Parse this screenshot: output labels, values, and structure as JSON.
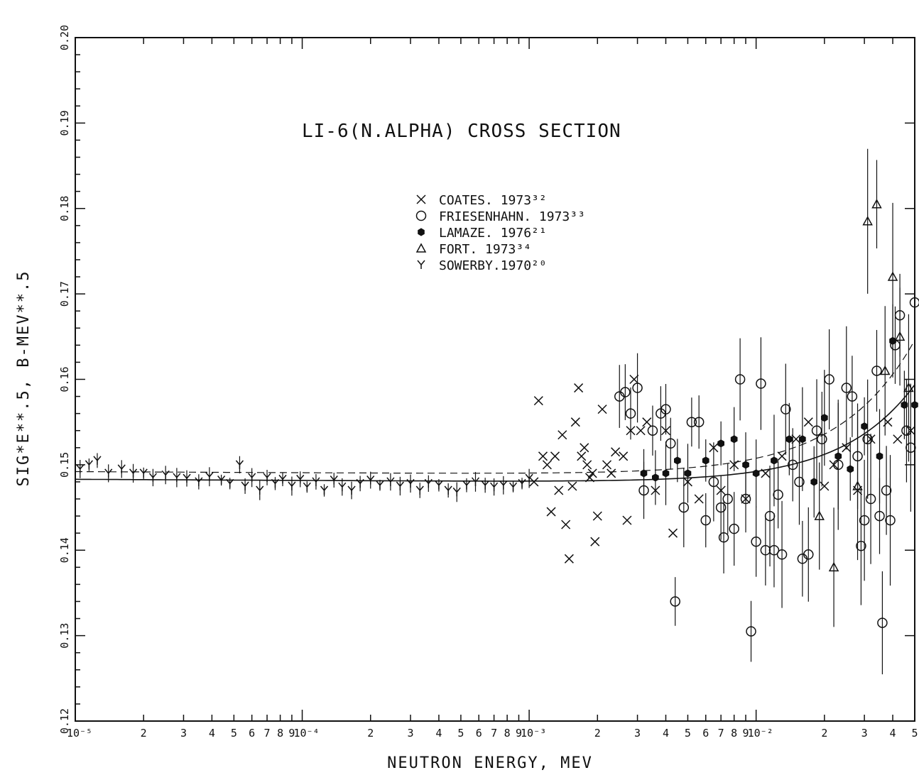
{
  "chart_data": {
    "type": "scatter",
    "title": "LI-6(N.ALPHA) CROSS SECTION",
    "xlabel": "NEUTRON ENERGY, MEV",
    "ylabel": "SIG*E**.5, B-MEV**.5",
    "x_scale": "log",
    "xlim": [
      1e-05,
      0.05
    ],
    "ylim": [
      0.12,
      0.2
    ],
    "y_ticks": [
      "0.12",
      "0.13",
      "0.14",
      "0.15",
      "0.16",
      "0.17",
      "0.18",
      "0.19",
      "0.20"
    ],
    "x_tick_labels": [
      {
        "value": 1e-05,
        "label": "10⁻⁵"
      },
      {
        "value": 2e-05,
        "label": "2"
      },
      {
        "value": 3e-05,
        "label": "3"
      },
      {
        "value": 4e-05,
        "label": "4"
      },
      {
        "value": 5e-05,
        "label": "5"
      },
      {
        "value": 6e-05,
        "label": "6"
      },
      {
        "value": 7e-05,
        "label": "7"
      },
      {
        "value": 8e-05,
        "label": "8"
      },
      {
        "value": 9e-05,
        "label": "9"
      },
      {
        "value": 0.0001,
        "label": "10⁻⁴"
      },
      {
        "value": 0.0002,
        "label": "2"
      },
      {
        "value": 0.0003,
        "label": "3"
      },
      {
        "value": 0.0004,
        "label": "4"
      },
      {
        "value": 0.0005,
        "label": "5"
      },
      {
        "value": 0.0006,
        "label": "6"
      },
      {
        "value": 0.0007,
        "label": "7"
      },
      {
        "value": 0.0008,
        "label": "8"
      },
      {
        "value": 0.0009,
        "label": "9"
      },
      {
        "value": 0.001,
        "label": "10⁻³"
      },
      {
        "value": 0.002,
        "label": "2"
      },
      {
        "value": 0.003,
        "label": "3"
      },
      {
        "value": 0.004,
        "label": "4"
      },
      {
        "value": 0.005,
        "label": "5"
      },
      {
        "value": 0.006,
        "label": "6"
      },
      {
        "value": 0.007,
        "label": "7"
      },
      {
        "value": 0.008,
        "label": "8"
      },
      {
        "value": 0.009,
        "label": "9"
      },
      {
        "value": 0.01,
        "label": "10⁻²"
      },
      {
        "value": 0.02,
        "label": "2"
      },
      {
        "value": 0.03,
        "label": "3"
      },
      {
        "value": 0.04,
        "label": "4"
      },
      {
        "value": 0.05,
        "label": "5"
      }
    ],
    "grid": false,
    "legend_placement": "top-center",
    "series": [
      {
        "name": "COATES. 1973³²",
        "marker": "x",
        "points": [
          [
            0.00105,
            0.148
          ],
          [
            0.0011,
            0.1575
          ],
          [
            0.00115,
            0.151
          ],
          [
            0.0012,
            0.15
          ],
          [
            0.00125,
            0.1445
          ],
          [
            0.0013,
            0.151
          ],
          [
            0.00135,
            0.147
          ],
          [
            0.0014,
            0.1535
          ],
          [
            0.00145,
            0.143
          ],
          [
            0.0015,
            0.139
          ],
          [
            0.00155,
            0.1475
          ],
          [
            0.0016,
            0.155
          ],
          [
            0.00165,
            0.159
          ],
          [
            0.0017,
            0.151
          ],
          [
            0.00175,
            0.152
          ],
          [
            0.0018,
            0.15
          ],
          [
            0.00185,
            0.1485
          ],
          [
            0.0019,
            0.149
          ],
          [
            0.00195,
            0.141
          ],
          [
            0.002,
            0.144
          ],
          [
            0.0021,
            0.1565
          ],
          [
            0.0022,
            0.15
          ],
          [
            0.0023,
            0.149
          ],
          [
            0.0024,
            0.1515
          ],
          [
            0.0026,
            0.151
          ],
          [
            0.0027,
            0.1435
          ],
          [
            0.0028,
            0.154
          ],
          [
            0.0029,
            0.16
          ],
          [
            0.0031,
            0.154
          ],
          [
            0.0033,
            0.155
          ],
          [
            0.0036,
            0.147
          ],
          [
            0.004,
            0.154
          ],
          [
            0.0043,
            0.142
          ],
          [
            0.005,
            0.148
          ],
          [
            0.0056,
            0.146
          ],
          [
            0.0065,
            0.152
          ],
          [
            0.007,
            0.147
          ],
          [
            0.008,
            0.15
          ],
          [
            0.009,
            0.146
          ],
          [
            0.011,
            0.149
          ],
          [
            0.013,
            0.151
          ],
          [
            0.015,
            0.153
          ],
          [
            0.017,
            0.155
          ],
          [
            0.02,
            0.1475
          ],
          [
            0.022,
            0.15
          ],
          [
            0.025,
            0.152
          ],
          [
            0.028,
            0.147
          ],
          [
            0.032,
            0.153
          ],
          [
            0.038,
            0.155
          ],
          [
            0.042,
            0.153
          ],
          [
            0.048,
            0.154
          ]
        ]
      },
      {
        "name": "FRIESENHAHN. 1973³³",
        "marker": "circle",
        "points": [
          [
            0.0025,
            0.158
          ],
          [
            0.00265,
            0.1585
          ],
          [
            0.0028,
            0.156
          ],
          [
            0.003,
            0.159
          ],
          [
            0.0032,
            0.147
          ],
          [
            0.0035,
            0.154
          ],
          [
            0.0038,
            0.156
          ],
          [
            0.004,
            0.1565
          ],
          [
            0.0042,
            0.1525
          ],
          [
            0.0044,
            0.134
          ],
          [
            0.0048,
            0.145
          ],
          [
            0.0052,
            0.155
          ],
          [
            0.0056,
            0.155
          ],
          [
            0.006,
            0.1435
          ],
          [
            0.0065,
            0.148
          ],
          [
            0.007,
            0.145
          ],
          [
            0.0072,
            0.1415
          ],
          [
            0.0075,
            0.146
          ],
          [
            0.008,
            0.1425
          ],
          [
            0.0085,
            0.16
          ],
          [
            0.009,
            0.146
          ],
          [
            0.0095,
            0.1305
          ],
          [
            0.01,
            0.141
          ],
          [
            0.0105,
            0.1595
          ],
          [
            0.011,
            0.14
          ],
          [
            0.0115,
            0.144
          ],
          [
            0.012,
            0.14
          ],
          [
            0.0125,
            0.1465
          ],
          [
            0.013,
            0.1395
          ],
          [
            0.0135,
            0.1565
          ],
          [
            0.0145,
            0.15
          ],
          [
            0.0155,
            0.148
          ],
          [
            0.016,
            0.139
          ],
          [
            0.017,
            0.1395
          ],
          [
            0.0185,
            0.154
          ],
          [
            0.0195,
            0.153
          ],
          [
            0.021,
            0.16
          ],
          [
            0.023,
            0.15
          ],
          [
            0.025,
            0.159
          ],
          [
            0.0265,
            0.158
          ],
          [
            0.028,
            0.151
          ],
          [
            0.029,
            0.1405
          ],
          [
            0.03,
            0.1435
          ],
          [
            0.031,
            0.153
          ],
          [
            0.032,
            0.146
          ],
          [
            0.034,
            0.161
          ],
          [
            0.035,
            0.144
          ],
          [
            0.036,
            0.1315
          ],
          [
            0.0375,
            0.147
          ],
          [
            0.039,
            0.1435
          ],
          [
            0.041,
            0.164
          ],
          [
            0.043,
            0.1675
          ],
          [
            0.046,
            0.154
          ],
          [
            0.048,
            0.152
          ],
          [
            0.05,
            0.169
          ]
        ]
      },
      {
        "name": "LAMAZE. 1976²¹",
        "marker": "filled-hexagon",
        "points": [
          [
            0.0032,
            0.149
          ],
          [
            0.0036,
            0.1485
          ],
          [
            0.004,
            0.149
          ],
          [
            0.0045,
            0.1505
          ],
          [
            0.005,
            0.149
          ],
          [
            0.006,
            0.1505
          ],
          [
            0.007,
            0.1525
          ],
          [
            0.008,
            0.153
          ],
          [
            0.009,
            0.15
          ],
          [
            0.01,
            0.149
          ],
          [
            0.012,
            0.1505
          ],
          [
            0.014,
            0.153
          ],
          [
            0.016,
            0.153
          ],
          [
            0.018,
            0.148
          ],
          [
            0.02,
            0.1555
          ],
          [
            0.023,
            0.151
          ],
          [
            0.026,
            0.1495
          ],
          [
            0.03,
            0.1545
          ],
          [
            0.035,
            0.151
          ],
          [
            0.04,
            0.1645
          ],
          [
            0.045,
            0.157
          ],
          [
            0.05,
            0.157
          ]
        ]
      },
      {
        "name": "FORT. 1973³⁴",
        "marker": "triangle",
        "points": [
          [
            0.019,
            0.144
          ],
          [
            0.022,
            0.138
          ],
          [
            0.028,
            0.1475
          ],
          [
            0.031,
            0.1785
          ],
          [
            0.034,
            0.1805
          ],
          [
            0.037,
            0.161
          ],
          [
            0.04,
            0.172
          ],
          [
            0.043,
            0.165
          ],
          [
            0.047,
            0.159
          ]
        ]
      },
      {
        "name": "SOWERBY.1970²⁰",
        "marker": "y",
        "points": [
          [
            1.05e-05,
            0.1495
          ],
          [
            1.15e-05,
            0.15
          ],
          [
            1.25e-05,
            0.1505
          ],
          [
            1.4e-05,
            0.149
          ],
          [
            1.6e-05,
            0.1495
          ],
          [
            1.8e-05,
            0.149
          ],
          [
            2e-05,
            0.149
          ],
          [
            2.2e-05,
            0.1485
          ],
          [
            2.5e-05,
            0.1488
          ],
          [
            2.8e-05,
            0.1485
          ],
          [
            3.1e-05,
            0.1484
          ],
          [
            3.5e-05,
            0.148
          ],
          [
            3.9e-05,
            0.1486
          ],
          [
            4.4e-05,
            0.1482
          ],
          [
            4.8e-05,
            0.1478
          ],
          [
            5.3e-05,
            0.15
          ],
          [
            5.6e-05,
            0.1475
          ],
          [
            6e-05,
            0.1485
          ],
          [
            6.5e-05,
            0.147
          ],
          [
            7e-05,
            0.1485
          ],
          [
            7.6e-05,
            0.1478
          ],
          [
            8.2e-05,
            0.1483
          ],
          [
            9e-05,
            0.1475
          ],
          [
            9.8e-05,
            0.1483
          ],
          [
            0.000105,
            0.1474
          ],
          [
            0.000115,
            0.148
          ],
          [
            0.000125,
            0.147
          ],
          [
            0.000138,
            0.1482
          ],
          [
            0.00015,
            0.1474
          ],
          [
            0.000165,
            0.147
          ],
          [
            0.00018,
            0.1478
          ],
          [
            0.0002,
            0.1482
          ],
          [
            0.00022,
            0.1476
          ],
          [
            0.000245,
            0.148
          ],
          [
            0.00027,
            0.1475
          ],
          [
            0.0003,
            0.1478
          ],
          [
            0.00033,
            0.147
          ],
          [
            0.00036,
            0.1478
          ],
          [
            0.0004,
            0.1476
          ],
          [
            0.00044,
            0.147
          ],
          [
            0.00048,
            0.1468
          ],
          [
            0.00053,
            0.1476
          ],
          [
            0.00058,
            0.148
          ],
          [
            0.00064,
            0.1476
          ],
          [
            0.0007,
            0.1474
          ],
          [
            0.00077,
            0.1476
          ],
          [
            0.00085,
            0.1474
          ],
          [
            0.00093,
            0.1478
          ],
          [
            0.001,
            0.1484
          ]
        ]
      }
    ]
  }
}
